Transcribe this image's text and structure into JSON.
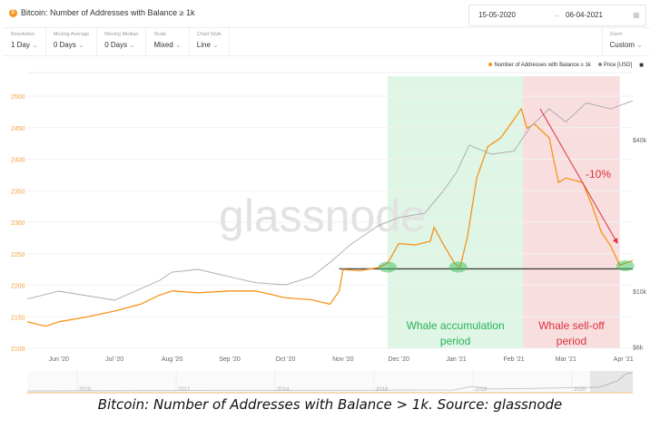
{
  "header": {
    "title": "Bitcoin: Number of Addresses with Balance ≥ 1k",
    "coin_icon": "bitcoin-icon",
    "date_from": "15-05-2020",
    "date_arrow": "→",
    "date_to": "06-04-2021"
  },
  "toolbar": [
    {
      "label": "Resolution",
      "value": "1 Day"
    },
    {
      "label": "Moving Average",
      "value": "0 Days"
    },
    {
      "label": "Moving Median",
      "value": "0 Days"
    },
    {
      "label": "Scale",
      "value": "Mixed"
    },
    {
      "label": "Chart Style",
      "value": "Line"
    }
  ],
  "zoom": {
    "label": "Zoom",
    "value": "Custom"
  },
  "caption": "Bitcoin: Number of Addresses with Balance > 1k. Source: glassnode",
  "colors": {
    "addresses": "#f7931a",
    "price": "#aaaaaa",
    "accum": "#dff5e5",
    "selloff": "#f8dede",
    "accum_text": "#2bb35a",
    "selloff_text": "#d9333f"
  },
  "chart_data": {
    "type": "line",
    "title": "Bitcoin: Number of Addresses with Balance ≥ 1k",
    "watermark": "glassnode",
    "legend": [
      "Number of Addresses with Balance ≥ 1k",
      "Price [USD]"
    ],
    "legend_position": "top-right",
    "x_range": [
      "2020-05-15",
      "2021-04-06"
    ],
    "x_ticks": [
      "Jun '20",
      "Jul '20",
      "Aug '20",
      "Sep '20",
      "Oct '20",
      "Nov '20",
      "Dec '20",
      "Jan '21",
      "Feb '21",
      "Mar '21",
      "Apr '21"
    ],
    "x_tick_dates": [
      "2020-06-01",
      "2020-07-01",
      "2020-08-01",
      "2020-09-01",
      "2020-10-01",
      "2020-11-01",
      "2020-12-01",
      "2021-01-01",
      "2021-02-01",
      "2021-03-01",
      "2021-04-01"
    ],
    "y_left": {
      "range": [
        2100,
        2500
      ],
      "ticks": [
        2100,
        2150,
        2200,
        2250,
        2300,
        2350,
        2400,
        2450,
        2500
      ]
    },
    "y_right": {
      "scale": "log",
      "ticks": [
        "$6k",
        "$10k",
        "$40k"
      ],
      "tick_values": [
        6000,
        10000,
        40000
      ]
    },
    "series": [
      {
        "name": "Number of Addresses with Balance ≥ 1k",
        "axis": "left",
        "points": [
          [
            "2020-05-15",
            2142
          ],
          [
            "2020-05-25",
            2135
          ],
          [
            "2020-06-01",
            2142
          ],
          [
            "2020-06-15",
            2149
          ],
          [
            "2020-07-01",
            2159
          ],
          [
            "2020-07-15",
            2170
          ],
          [
            "2020-07-25",
            2184
          ],
          [
            "2020-08-01",
            2191
          ],
          [
            "2020-08-15",
            2188
          ],
          [
            "2020-09-01",
            2191
          ],
          [
            "2020-09-15",
            2191
          ],
          [
            "2020-10-01",
            2180
          ],
          [
            "2020-10-15",
            2177
          ],
          [
            "2020-10-25",
            2170
          ],
          [
            "2020-10-30",
            2191
          ],
          [
            "2020-11-01",
            2225
          ],
          [
            "2020-11-10",
            2223
          ],
          [
            "2020-11-20",
            2228
          ],
          [
            "2020-11-25",
            2235
          ],
          [
            "2020-12-01",
            2266
          ],
          [
            "2020-12-10",
            2264
          ],
          [
            "2020-12-18",
            2270
          ],
          [
            "2020-12-20",
            2292
          ],
          [
            "2020-12-25",
            2265
          ],
          [
            "2020-12-31",
            2235
          ],
          [
            "2021-01-03",
            2228
          ],
          [
            "2021-01-07",
            2277
          ],
          [
            "2021-01-12",
            2370
          ],
          [
            "2021-01-18",
            2420
          ],
          [
            "2021-01-25",
            2434
          ],
          [
            "2021-02-01",
            2463
          ],
          [
            "2021-02-05",
            2480
          ],
          [
            "2021-02-08",
            2449
          ],
          [
            "2021-02-12",
            2456
          ],
          [
            "2021-02-20",
            2434
          ],
          [
            "2021-02-25",
            2363
          ],
          [
            "2021-03-01",
            2370
          ],
          [
            "2021-03-10",
            2363
          ],
          [
            "2021-03-15",
            2327
          ],
          [
            "2021-03-20",
            2285
          ],
          [
            "2021-03-25",
            2263
          ],
          [
            "2021-03-30",
            2232
          ],
          [
            "2021-04-06",
            2239
          ]
        ]
      },
      {
        "name": "Price [USD]",
        "axis": "right",
        "points": [
          [
            "2020-05-15",
            9300
          ],
          [
            "2020-06-01",
            10000
          ],
          [
            "2020-07-01",
            9200
          ],
          [
            "2020-07-25",
            11000
          ],
          [
            "2020-08-01",
            11900
          ],
          [
            "2020-08-15",
            12200
          ],
          [
            "2020-09-01",
            11400
          ],
          [
            "2020-09-15",
            10800
          ],
          [
            "2020-10-01",
            10600
          ],
          [
            "2020-10-15",
            11400
          ],
          [
            "2020-10-25",
            13000
          ],
          [
            "2020-11-05",
            15300
          ],
          [
            "2020-11-20",
            18200
          ],
          [
            "2020-12-01",
            19600
          ],
          [
            "2020-12-15",
            20400
          ],
          [
            "2020-12-25",
            25000
          ],
          [
            "2021-01-01",
            29600
          ],
          [
            "2021-01-08",
            38000
          ],
          [
            "2021-01-20",
            35000
          ],
          [
            "2021-02-01",
            36000
          ],
          [
            "2021-02-10",
            45000
          ],
          [
            "2021-02-20",
            53000
          ],
          [
            "2021-03-01",
            47000
          ],
          [
            "2021-03-12",
            56000
          ],
          [
            "2021-03-25",
            53000
          ],
          [
            "2021-04-06",
            57000
          ]
        ]
      }
    ],
    "annotations": {
      "accumulation": {
        "label": "Whale accumulation period",
        "range": [
          "2020-11-25",
          "2021-02-06"
        ]
      },
      "selloff": {
        "label": "Whale sell-off period",
        "range": [
          "2021-02-06",
          "2021-03-30"
        ]
      },
      "change": "-10%",
      "support_level": 2226
    },
    "navigator": {
      "years": [
        "2010",
        "2012",
        "2014",
        "2016",
        "2018",
        "2020"
      ]
    }
  }
}
